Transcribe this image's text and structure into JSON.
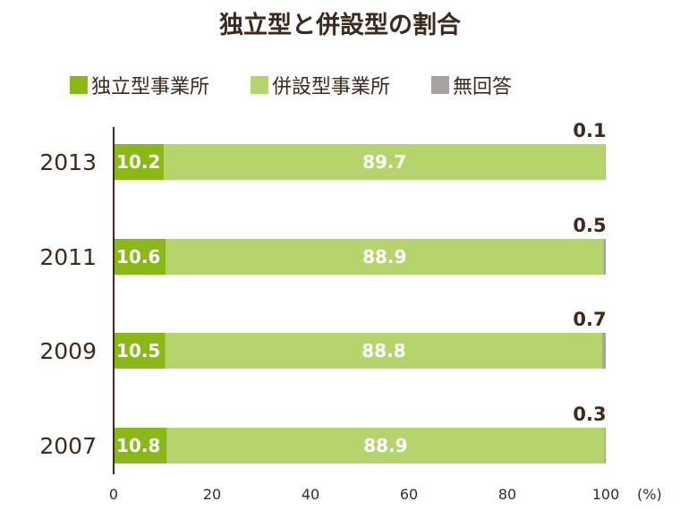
{
  "chart_data": {
    "type": "bar",
    "orientation": "horizontal",
    "stacked": true,
    "title": "独立型と併設型の割合",
    "xlabel": "",
    "ylabel": "",
    "unit": "(%)",
    "xlim": [
      0,
      100
    ],
    "x_ticks": [
      "0",
      "20",
      "40",
      "60",
      "80",
      "100"
    ],
    "grid": false,
    "legend_position": "top",
    "categories": [
      "2013",
      "2011",
      "2009",
      "2007"
    ],
    "series": [
      {
        "name": "独立型事業所",
        "color": "#8ab817",
        "values": [
          10.2,
          10.6,
          10.5,
          10.8
        ]
      },
      {
        "name": "併設型事業所",
        "color": "#b6d46c",
        "values": [
          89.7,
          88.9,
          88.8,
          88.9
        ]
      },
      {
        "name": "無回答",
        "color": "#a8a29c",
        "values": [
          0.1,
          0.5,
          0.7,
          0.3
        ]
      }
    ]
  }
}
